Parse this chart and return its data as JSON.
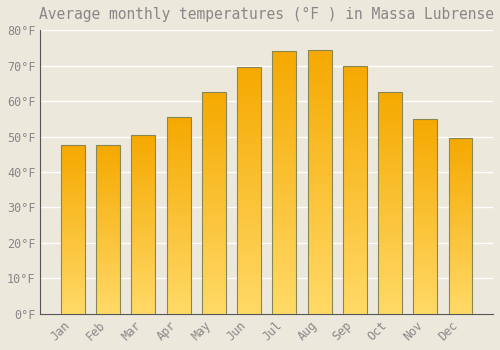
{
  "title": "Average monthly temperatures (°F ) in Massa Lubrense",
  "months": [
    "Jan",
    "Feb",
    "Mar",
    "Apr",
    "May",
    "Jun",
    "Jul",
    "Aug",
    "Sep",
    "Oct",
    "Nov",
    "Dec"
  ],
  "values": [
    47.5,
    47.5,
    50.5,
    55.5,
    62.5,
    69.5,
    74.0,
    74.5,
    70.0,
    62.5,
    55.0,
    49.5
  ],
  "bar_color_top": "#F5A800",
  "bar_color_bottom": "#FFD966",
  "bar_border_color": "#888855",
  "background_color": "#EDE8DC",
  "grid_color": "#FFFFFF",
  "text_color": "#888888",
  "ylim": [
    0,
    80
  ],
  "yticks": [
    0,
    10,
    20,
    30,
    40,
    50,
    60,
    70,
    80
  ],
  "ytick_labels": [
    "0°F",
    "10°F",
    "20°F",
    "30°F",
    "40°F",
    "50°F",
    "60°F",
    "70°F",
    "80°F"
  ],
  "title_fontsize": 10.5,
  "tick_fontsize": 8.5,
  "bar_width": 0.68
}
